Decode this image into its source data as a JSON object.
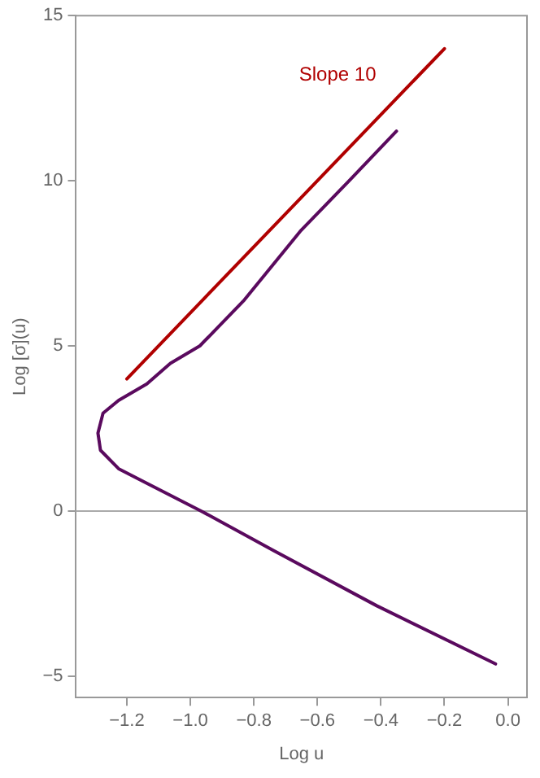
{
  "chart_data": {
    "type": "line",
    "xlabel": "Log u",
    "ylabel": "Log [σ](u)",
    "legend": false,
    "grid": false,
    "marker": "none",
    "xlim": [
      -1.36,
      0.06
    ],
    "ylim": [
      -5.65,
      15
    ],
    "xticks": [
      {
        "value": -1.2,
        "label": "−1.2"
      },
      {
        "value": -1.0,
        "label": "−1.0"
      },
      {
        "value": -0.8,
        "label": "−0.8"
      },
      {
        "value": -0.6,
        "label": "−0.6"
      },
      {
        "value": -0.4,
        "label": "−0.4"
      },
      {
        "value": -0.2,
        "label": "−0.2"
      },
      {
        "value": 0,
        "label": "0.0"
      }
    ],
    "yticks": [
      {
        "value": -5,
        "label": "−5"
      },
      0,
      5,
      10,
      15
    ],
    "series": [
      {
        "color": "#b00000",
        "x": [
          -1.2,
          -0.2
        ],
        "values": [
          4,
          14
        ]
      },
      {
        "color": "#5a0a5e",
        "x": [
          -0.351,
          -0.5,
          -0.654,
          -0.83,
          -0.97,
          -1.063,
          -1.137,
          -1.226,
          -1.275,
          -1.291,
          -1.283,
          -1.226,
          -1.145,
          -0.966,
          -0.738,
          -0.413,
          -0.039
        ],
        "values": [
          11.5,
          10.0,
          8.47,
          6.39,
          5.0,
          4.47,
          3.85,
          3.35,
          2.96,
          2.36,
          1.84,
          1.28,
          0.88,
          0,
          -1.2,
          -2.87,
          -4.63
        ]
      }
    ],
    "ref_lines": [
      {
        "axis": "y",
        "value": 0,
        "color": "#aaaaaa"
      }
    ],
    "annotations": [
      "Slope 10"
    ]
  }
}
